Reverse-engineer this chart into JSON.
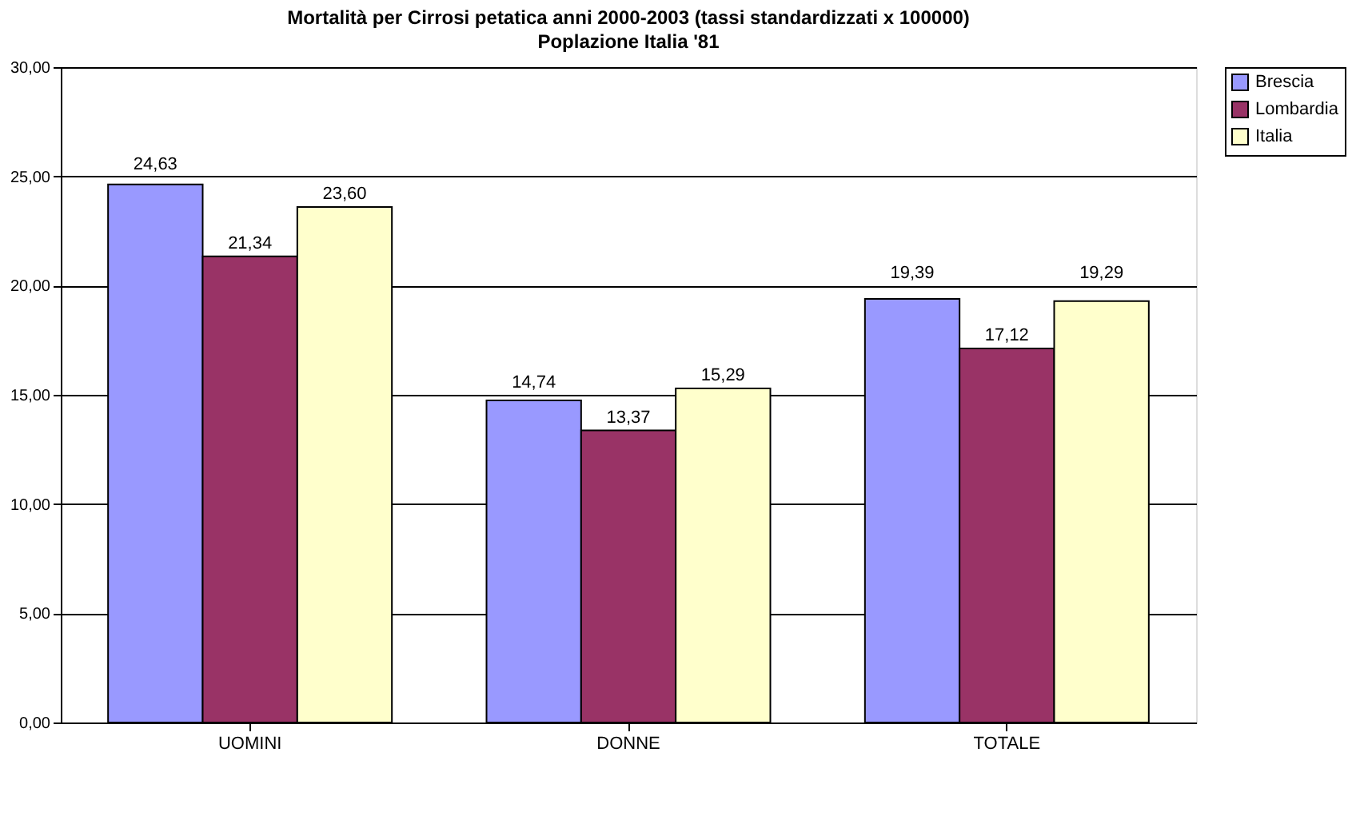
{
  "chart_data": {
    "type": "bar",
    "title": "Mortalità per Cirrosi petatica anni 2000-2003 (tassi standardizzati x 100000)",
    "subtitle": "Poplazione Italia '81",
    "categories": [
      "UOMINI",
      "DONNE",
      "TOTALE"
    ],
    "series": [
      {
        "name": "Brescia",
        "color": "#9999ff",
        "values": [
          24.63,
          14.74,
          19.39
        ],
        "value_labels": [
          "24,63",
          "14,74",
          "19,39"
        ]
      },
      {
        "name": "Lombardia",
        "color": "#993366",
        "values": [
          21.34,
          13.37,
          17.12
        ],
        "value_labels": [
          "21,34",
          "13,37",
          "17,12"
        ]
      },
      {
        "name": "Italia",
        "color": "#ffffcc",
        "values": [
          23.6,
          15.29,
          19.29
        ],
        "value_labels": [
          "23,60",
          "15,29",
          "19,29"
        ]
      }
    ],
    "ylim": [
      0,
      30
    ],
    "yticks": [
      {
        "value": 0,
        "label": "0,00"
      },
      {
        "value": 5,
        "label": "5,00"
      },
      {
        "value": 10,
        "label": "10,00"
      },
      {
        "value": 15,
        "label": "15,00"
      },
      {
        "value": 20,
        "label": "20,00"
      },
      {
        "value": 25,
        "label": "25,00"
      },
      {
        "value": 30,
        "label": "30,00"
      }
    ],
    "grid": "y",
    "legend": "right"
  }
}
